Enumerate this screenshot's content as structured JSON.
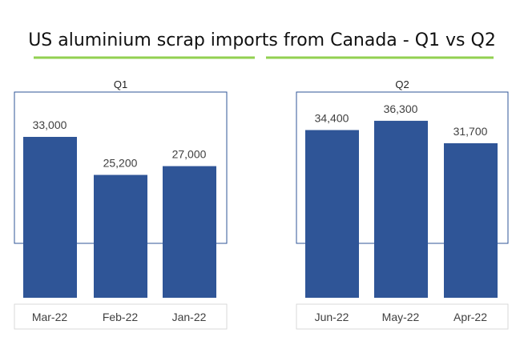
{
  "chart_data": [
    {
      "type": "bar",
      "title": "US aluminium scrap imports from Canada - Q1 vs Q2",
      "group_label": "Q1",
      "categories": [
        "Mar-22",
        "Feb-22",
        "Jan-22"
      ],
      "values": [
        33000,
        25200,
        27000
      ],
      "data_labels": [
        "33,000",
        "25,200",
        "27,000"
      ],
      "ylim": [
        0,
        40000
      ],
      "grid": false,
      "legend": "none",
      "bar_color": "#2F5597"
    },
    {
      "type": "bar",
      "group_label": "Q2",
      "categories": [
        "Jun-22",
        "May-22",
        "Apr-22"
      ],
      "values": [
        34400,
        36300,
        31700
      ],
      "data_labels": [
        "34,400",
        "36,300",
        "31,700"
      ],
      "ylim": [
        0,
        40000
      ],
      "grid": false,
      "legend": "none",
      "bar_color": "#2F5597"
    }
  ],
  "colors": {
    "accent_line": "#92D050",
    "frame": "#2F5597",
    "axis_box": "#D9D9D9",
    "label_text": "#404040"
  }
}
